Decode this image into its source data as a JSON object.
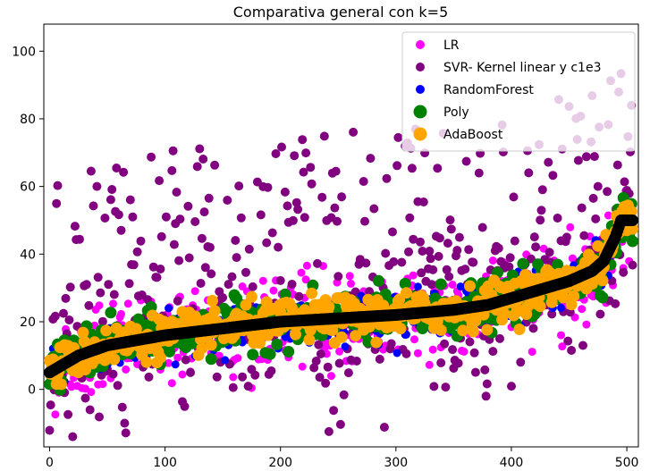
{
  "chart_data": {
    "type": "scatter",
    "title": "Comparativa general con k=5",
    "xlabel": "",
    "ylabel": "",
    "xlim": [
      -5,
      510
    ],
    "ylim": [
      -17,
      108
    ],
    "xticks": [
      0,
      100,
      200,
      300,
      400,
      500
    ],
    "yticks": [
      0,
      20,
      40,
      60,
      80,
      100
    ],
    "grid": false,
    "legend_position": "top-right",
    "n_points": 506,
    "series": [
      {
        "name": "LR",
        "color": "#ff00ff",
        "marker_size": "small"
      },
      {
        "name": "SVR- Kernel linear y c1e3",
        "color": "#800080",
        "marker_size": "small"
      },
      {
        "name": "RandomForest",
        "color": "#0000ff",
        "marker_size": "small"
      },
      {
        "name": "Poly",
        "color": "#008000",
        "marker_size": "large"
      },
      {
        "name": "AdaBoost",
        "color": "#ffa500",
        "marker_size": "large"
      }
    ],
    "actual_sorted_target": {
      "color": "#000000",
      "x": [
        0,
        25,
        50,
        100,
        150,
        200,
        250,
        300,
        350,
        380,
        400,
        430,
        450,
        470,
        480,
        490,
        495,
        505
      ],
      "y": [
        5,
        10,
        13,
        16,
        18,
        20,
        21,
        22,
        23.5,
        25,
        27,
        30,
        32,
        35,
        38,
        45,
        50,
        50
      ]
    }
  }
}
